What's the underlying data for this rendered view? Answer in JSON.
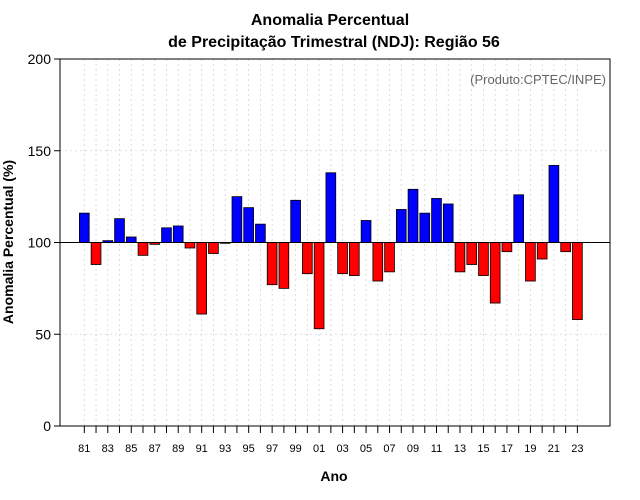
{
  "chart_data": {
    "type": "bar",
    "title": [
      "Anomalia Percentual",
      "de Precipitação Trimestral (NDJ): Região 56"
    ],
    "xlabel": "Ano",
    "ylabel": "Anomalia Percentual (%)",
    "credit": "(Produto:CPTEC/INPE)",
    "ylim": [
      0,
      200
    ],
    "yticks": [
      0,
      50,
      100,
      150,
      200
    ],
    "baseline": 100,
    "grid": true,
    "colors": {
      "above": "#0000ff",
      "below": "#ff0000",
      "edge": "#000000",
      "grid": "#d3d3d3"
    },
    "tick_labels": [
      "81",
      "83",
      "85",
      "87",
      "89",
      "91",
      "93",
      "95",
      "97",
      "99",
      "01",
      "03",
      "05",
      "07",
      "09",
      "11",
      "13",
      "15",
      "17",
      "19",
      "21",
      "23"
    ],
    "categories": [
      "81",
      "82",
      "83",
      "84",
      "85",
      "86",
      "87",
      "88",
      "89",
      "90",
      "91",
      "92",
      "93",
      "94",
      "95",
      "96",
      "97",
      "98",
      "99",
      "00",
      "01",
      "02",
      "03",
      "04",
      "05",
      "06",
      "07",
      "08",
      "09",
      "10",
      "11",
      "12",
      "13",
      "14",
      "15",
      "16",
      "17",
      "18",
      "19",
      "20",
      "21",
      "22",
      "23"
    ],
    "values": [
      116,
      88,
      101,
      113,
      103,
      93,
      99,
      108,
      109,
      97,
      61,
      94,
      100,
      125,
      119,
      110,
      77,
      75,
      123,
      83,
      53,
      138,
      83,
      82,
      112,
      79,
      84,
      118,
      129,
      116,
      124,
      121,
      84,
      88,
      82,
      67,
      95,
      126,
      79,
      91,
      142,
      95,
      58
    ]
  }
}
